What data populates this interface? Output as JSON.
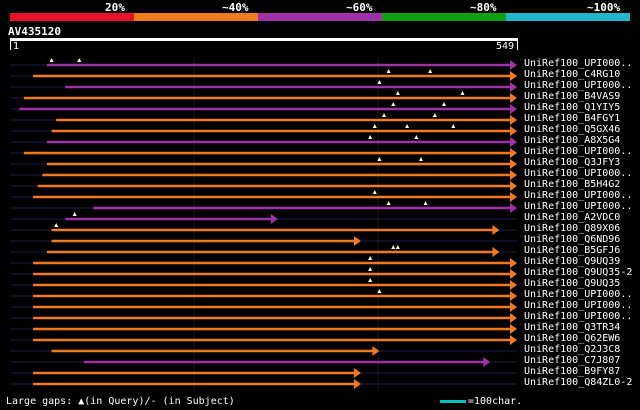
{
  "legend": {
    "items": [
      {
        "label": "20%",
        "color": "#e8102a"
      },
      {
        "label": "~40%",
        "color": "#f07a1e"
      },
      {
        "label": "~60%",
        "color": "#a030a8"
      },
      {
        "label": "~80%",
        "color": "#10a010"
      },
      {
        "label": "~100%",
        "color": "#20b8c8"
      }
    ]
  },
  "query": {
    "title": "AV435120",
    "start_label": "1",
    "end_label": "549",
    "length": 549
  },
  "hits": [
    {
      "label": "UniRef100_UPI000..",
      "color": "#a030a8",
      "start": 40,
      "end": 549,
      "gaps": [
        45,
        75
      ],
      "segs": []
    },
    {
      "label": "UniRef100_C4RG10",
      "color": "#f07a1e",
      "start": 25,
      "end": 549,
      "gaps": [
        410,
        455
      ],
      "segs": []
    },
    {
      "label": "UniRef100_UPI000..",
      "color": "#a030a8",
      "start": 60,
      "end": 549,
      "gaps": [
        400
      ],
      "segs": []
    },
    {
      "label": "UniRef100_B4VAS9",
      "color": "#f07a1e",
      "start": 15,
      "end": 549,
      "gaps": [
        420,
        490
      ],
      "segs": []
    },
    {
      "label": "UniRef100_Q1YIY5",
      "color": "#a030a8",
      "start": 10,
      "end": 549,
      "gaps": [
        415,
        470
      ],
      "segs": []
    },
    {
      "label": "UniRef100_B4FGY1",
      "color": "#f07a1e",
      "start": 50,
      "end": 549,
      "gaps": [
        405,
        460
      ],
      "segs": []
    },
    {
      "label": "UniRef100_Q5GX46",
      "color": "#f07a1e",
      "start": 45,
      "end": 549,
      "gaps": [
        395,
        430,
        480
      ],
      "segs": []
    },
    {
      "label": "UniRef100_A8X5G4",
      "color": "#a030a8",
      "start": 40,
      "end": 549,
      "gaps": [
        390,
        440
      ],
      "segs": []
    },
    {
      "label": "UniRef100_UPI000..",
      "color": "#f07a1e",
      "start": 15,
      "end": 549,
      "gaps": [],
      "segs": []
    },
    {
      "label": "UniRef100_Q3JFY3",
      "color": "#f07a1e",
      "start": 40,
      "end": 549,
      "gaps": [
        400,
        445
      ],
      "segs": []
    },
    {
      "label": "UniRef100_UPI000..",
      "color": "#f07a1e",
      "start": 35,
      "end": 549,
      "gaps": [],
      "segs": []
    },
    {
      "label": "UniRef100_B5H4G2",
      "color": "#f07a1e",
      "start": 30,
      "end": 549,
      "gaps": [],
      "segs": []
    },
    {
      "label": "UniRef100_UPI000..",
      "color": "#f07a1e",
      "start": 25,
      "end": 549,
      "gaps": [
        395
      ],
      "segs": []
    },
    {
      "label": "UniRef100_UPI000..",
      "color": "#a030a8",
      "start": 90,
      "end": 549,
      "gaps": [
        410,
        450
      ],
      "segs": []
    },
    {
      "label": "UniRef100_A2VDC0",
      "color": "#a030a8",
      "start": 60,
      "end": 290,
      "gaps": [
        70
      ],
      "segs": []
    },
    {
      "label": "UniRef100_Q89X06",
      "color": "#f07a1e",
      "start": 45,
      "end": 530,
      "gaps": [
        50
      ],
      "segs": []
    },
    {
      "label": "UniRef100_Q6ND96",
      "color": "#f07a1e",
      "start": 45,
      "end": 380,
      "gaps": [],
      "segs": []
    },
    {
      "label": "UniRef100_B5GFJ6",
      "color": "#f07a1e",
      "start": 40,
      "end": 530,
      "gaps": [
        415,
        420
      ],
      "segs": []
    },
    {
      "label": "UniRef100_Q9UQ39",
      "color": "#f07a1e",
      "start": 25,
      "end": 549,
      "gaps": [
        390
      ],
      "segs": []
    },
    {
      "label": "UniRef100_Q9UQ35-2",
      "color": "#f07a1e",
      "start": 25,
      "end": 549,
      "gaps": [
        390
      ],
      "segs": []
    },
    {
      "label": "UniRef100_Q9UQ35",
      "color": "#f07a1e",
      "start": 25,
      "end": 549,
      "gaps": [
        390
      ],
      "segs": []
    },
    {
      "label": "UniRef100_UPI000..",
      "color": "#f07a1e",
      "start": 25,
      "end": 549,
      "gaps": [
        400
      ],
      "segs": []
    },
    {
      "label": "UniRef100_UPI000..",
      "color": "#f07a1e",
      "start": 25,
      "end": 549,
      "gaps": [],
      "segs": []
    },
    {
      "label": "UniRef100_UPI000..",
      "color": "#f07a1e",
      "start": 25,
      "end": 549,
      "gaps": [],
      "segs": []
    },
    {
      "label": "UniRef100_Q3TR34",
      "color": "#f07a1e",
      "start": 25,
      "end": 549,
      "gaps": [],
      "segs": []
    },
    {
      "label": "UniRef100_Q62EW6",
      "color": "#f07a1e",
      "start": 25,
      "end": 549,
      "gaps": [],
      "segs": []
    },
    {
      "label": "UniRef100_Q2J3C8",
      "color": "#f07a1e",
      "start": 45,
      "end": 400,
      "gaps": [],
      "segs": []
    },
    {
      "label": "UniRef100_C7J807",
      "color": "#a030a8",
      "start": 80,
      "end": 520,
      "gaps": [],
      "segs": []
    },
    {
      "label": "UniRef100_B9FY87",
      "color": "#f07a1e",
      "start": 25,
      "end": 380,
      "gaps": [],
      "segs": []
    },
    {
      "label": "UniRef100_Q84ZL0-2",
      "color": "#f07a1e",
      "start": 25,
      "end": 380,
      "gaps": [],
      "segs": []
    }
  ],
  "footer": {
    "left": "Large gaps: ▲(in Query)/- (in Subject)",
    "right": "=100char."
  }
}
